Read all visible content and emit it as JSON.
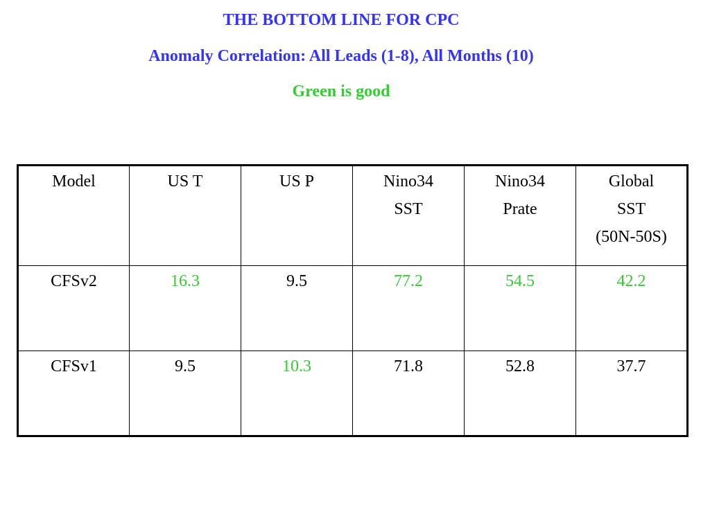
{
  "titles": {
    "main": "THE BOTTOM LINE FOR CPC",
    "subtitle": "Anomaly Correlation: All Leads (1-8), All Months (10)",
    "note": "Green is good"
  },
  "colors": {
    "title_blue": "#3333ff",
    "good_green": "#33cc33",
    "text": "#000000"
  },
  "table": {
    "headers": [
      [
        "Model"
      ],
      [
        "US T"
      ],
      [
        "US P"
      ],
      [
        "Nino34",
        "SST"
      ],
      [
        "Nino34",
        "Prate"
      ],
      [
        "Global",
        "SST",
        "(50N-50S)"
      ]
    ],
    "rows": [
      {
        "cells": [
          {
            "text": "CFSv2",
            "good": false
          },
          {
            "text": "16.3",
            "good": true
          },
          {
            "text": "9.5",
            "good": false
          },
          {
            "text": "77.2",
            "good": true
          },
          {
            "text": "54.5",
            "good": true
          },
          {
            "text": "42.2",
            "good": true
          }
        ]
      },
      {
        "cells": [
          {
            "text": "CFSv1",
            "good": false
          },
          {
            "text": "9.5",
            "good": false
          },
          {
            "text": "10.3",
            "good": true
          },
          {
            "text": "71.8",
            "good": false
          },
          {
            "text": "52.8",
            "good": false
          },
          {
            "text": "37.7",
            "good": false
          }
        ]
      }
    ]
  }
}
